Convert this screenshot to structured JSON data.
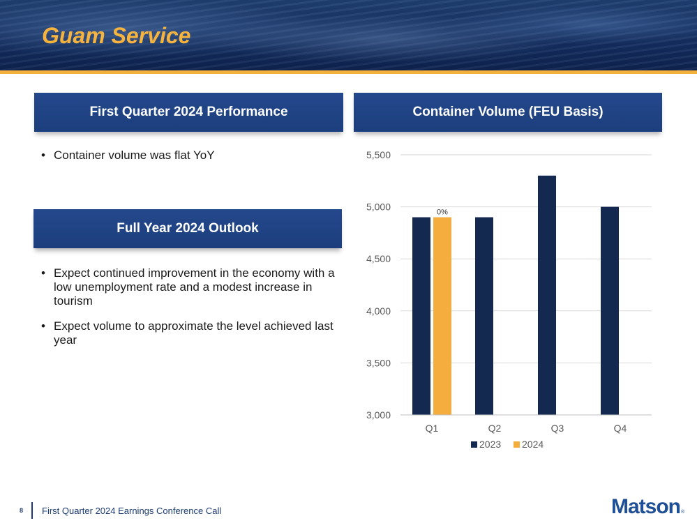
{
  "slide": {
    "title": "Guam Service"
  },
  "panels": {
    "performance": {
      "header": "First Quarter 2024 Performance",
      "bullets": [
        "Container volume was flat YoY"
      ]
    },
    "outlook": {
      "header": "Full Year 2024 Outlook",
      "bullets": [
        "Expect continued improvement in the economy with a low unemployment rate and a modest increase in tourism",
        "Expect volume to approximate the level achieved last year"
      ]
    },
    "chart": {
      "header": "Container Volume (FEU Basis)"
    }
  },
  "chart_data": {
    "type": "bar",
    "title": "Container Volume (FEU Basis)",
    "categories": [
      "Q1",
      "Q2",
      "Q3",
      "Q4"
    ],
    "series": [
      {
        "name": "2023",
        "color": "#13294f",
        "values": [
          4900,
          4900,
          5300,
          5000
        ]
      },
      {
        "name": "2024",
        "color": "#f5ad3e",
        "values": [
          4900,
          null,
          null,
          null
        ]
      }
    ],
    "annotations": [
      {
        "series": "2024",
        "category": "Q1",
        "text": "0%"
      }
    ],
    "ylim": [
      3000,
      5500
    ],
    "yticks": [
      3000,
      3500,
      4000,
      4500,
      5000,
      5500
    ],
    "ytick_labels": [
      "3,000",
      "3,500",
      "4,000",
      "4,500",
      "5,000",
      "5,500"
    ],
    "grid": true,
    "legend": "bottom"
  },
  "footer": {
    "page_number": "8",
    "text": "First Quarter 2024 Earnings Conference Call"
  },
  "logo": {
    "text": "Matson",
    "mark": "®"
  }
}
